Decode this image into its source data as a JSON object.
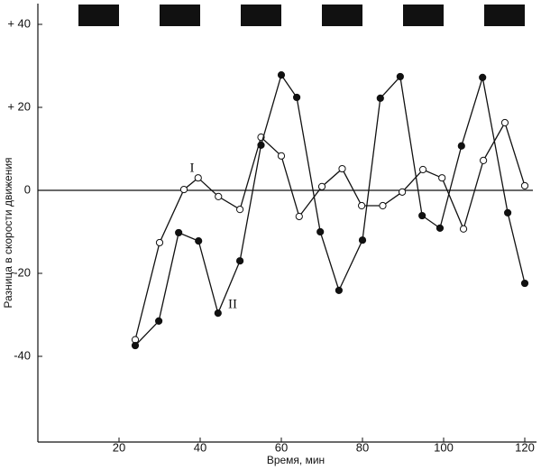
{
  "chart_data": {
    "type": "line",
    "xlabel": "Время, мин",
    "ylabel": "Разница в скорости движения",
    "xlim": [
      0,
      122
    ],
    "ylim": [
      -60,
      45
    ],
    "xticks": [
      20,
      40,
      60,
      80,
      100,
      120
    ],
    "yticks": [
      {
        "value": 40,
        "label": "+ 40"
      },
      {
        "value": 20,
        "label": "+ 20"
      },
      0,
      -20,
      -40
    ],
    "zero_line": true,
    "dark_periods": [
      [
        10,
        20
      ],
      [
        30,
        40
      ],
      [
        50,
        60
      ],
      [
        70,
        80
      ],
      [
        90,
        100
      ],
      [
        110,
        120
      ]
    ],
    "series": [
      {
        "name": "I",
        "marker": "open",
        "color": "#111",
        "x": [
          24,
          30,
          36,
          39.5,
          44.5,
          49.8,
          55,
          60,
          64.4,
          70,
          75,
          79.8,
          85,
          89.8,
          94.9,
          99.6,
          104.9,
          109.8,
          115.1,
          120
        ],
        "values": [
          -36,
          -12.6,
          0.2,
          3,
          -1.5,
          -4.6,
          12.8,
          8.3,
          -6.3,
          0.9,
          5.2,
          -3.7,
          -3.7,
          -0.4,
          5,
          3,
          -9.3,
          7.2,
          16.3,
          1.1
        ]
      },
      {
        "name": "II",
        "marker": "filled",
        "color": "#111",
        "x": [
          24,
          29.8,
          34.7,
          39.6,
          44.4,
          49.8,
          55,
          60,
          63.8,
          69.6,
          74.2,
          80,
          84.4,
          89.3,
          94.7,
          99.1,
          104.4,
          109.6,
          115.8,
          120
        ],
        "values": [
          -37.4,
          -31.5,
          -10.2,
          -12.2,
          -29.6,
          -17,
          10.9,
          27.8,
          22.4,
          -10,
          -24.1,
          -12,
          22.2,
          27.4,
          -6.1,
          -9.1,
          10.7,
          27.2,
          -5.4,
          -22.4
        ]
      }
    ]
  }
}
